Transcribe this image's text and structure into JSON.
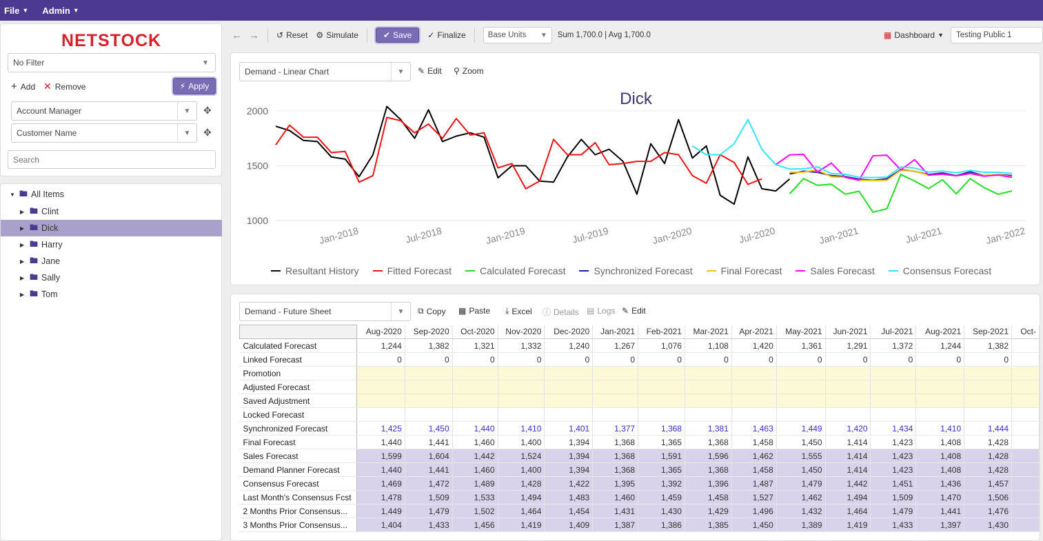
{
  "menu": {
    "file": "File",
    "admin": "Admin"
  },
  "logo": "NETSTOCK",
  "filter": {
    "selected": "No Filter",
    "add": "Add",
    "remove": "Remove",
    "apply": "Apply",
    "fields": [
      "Account Manager",
      "Customer Name"
    ],
    "search_placeholder": "Search"
  },
  "tree": {
    "root": "All Items",
    "items": [
      "Clint",
      "Dick",
      "Harry",
      "Jane",
      "Sally",
      "Tom"
    ],
    "selected": "Dick"
  },
  "toolbar": {
    "reset": "Reset",
    "simulate": "Simulate",
    "save": "Save",
    "finalize": "Finalize",
    "units": "Base Units",
    "stats": "Sum 1,700.0 | Avg 1,700.0",
    "dashboard": "Dashboard",
    "view": "Testing Public 1"
  },
  "chart_panel": {
    "selector": "Demand - Linear Chart",
    "edit": "Edit",
    "zoom": "Zoom"
  },
  "colors": {
    "accent": "#4b3a8f",
    "selected_row": "#a9a0cc",
    "logo": "#d6202b"
  },
  "chart_data": {
    "type": "line",
    "title": "Dick",
    "y_ticks": [
      1000,
      1500,
      2000
    ],
    "ylim": [
      950,
      2150
    ],
    "x_tick_labels": [
      "Jan-2018",
      "Jul-2018",
      "Jan-2019",
      "Jul-2019",
      "Jan-2020",
      "Jul-2020",
      "Jan-2021",
      "Jul-2021",
      "Jan-2022"
    ],
    "x_start_month": "Jul-2017",
    "x_end_month": "Jan-2022",
    "legend": "bottom",
    "series": [
      {
        "name": "Resultant History",
        "color": "#000000",
        "start_month": "Jul-2017",
        "values": [
          1860,
          1820,
          1730,
          1720,
          1580,
          1560,
          1400,
          1600,
          2040,
          1920,
          1750,
          2010,
          1720,
          1770,
          1800,
          1760,
          1390,
          1500,
          1500,
          1360,
          1350,
          1580,
          1740,
          1600,
          1650,
          1540,
          1240,
          1700,
          1520,
          1920,
          1570,
          1680,
          1230,
          1150,
          1580,
          1290,
          1270,
          1380
        ]
      },
      {
        "name": "Fitted Forecast",
        "color": "#ee1111",
        "start_month": "Jul-2017",
        "values": [
          1690,
          1870,
          1760,
          1760,
          1620,
          1630,
          1350,
          1410,
          1940,
          1910,
          1800,
          1880,
          1750,
          1930,
          1780,
          1800,
          1480,
          1520,
          1290,
          1360,
          1740,
          1600,
          1600,
          1710,
          1510,
          1520,
          1540,
          1540,
          1620,
          1600,
          1410,
          1340,
          1600,
          1530,
          1330,
          1380
        ]
      },
      {
        "name": "Calculated Forecast",
        "color": "#22dd22",
        "start_month": "Aug-2020",
        "values": [
          1244,
          1382,
          1321,
          1332,
          1240,
          1267,
          1076,
          1108,
          1420,
          1361,
          1291,
          1372,
          1244,
          1382,
          1300,
          1240,
          1270
        ]
      },
      {
        "name": "Synchronized Forecast",
        "color": "#1a1aa6",
        "start_month": "Aug-2020",
        "values": [
          1425,
          1450,
          1440,
          1410,
          1401,
          1377,
          1368,
          1381,
          1463,
          1449,
          1420,
          1434,
          1410,
          1444,
          1410,
          1420,
          1410
        ]
      },
      {
        "name": "Final Forecast",
        "color": "#f0c000",
        "start_month": "Aug-2020",
        "values": [
          1440,
          1441,
          1460,
          1400,
          1394,
          1368,
          1365,
          1368,
          1458,
          1450,
          1414,
          1423,
          1408,
          1428,
          1410,
          1420,
          1400
        ]
      },
      {
        "name": "Sales Forecast",
        "color": "#ff00ff",
        "start_month": "Jul-2020",
        "values": [
          1510,
          1599,
          1604,
          1442,
          1524,
          1394,
          1368,
          1591,
          1596,
          1462,
          1555,
          1414,
          1423,
          1408,
          1428,
          1405,
          1415,
          1395
        ]
      },
      {
        "name": "Consensus Forecast",
        "color": "#33e5f2",
        "start_month": "Jan-2020",
        "values": [
          1680,
          1600,
          1600,
          1700,
          1920,
          1650,
          1510,
          1469,
          1472,
          1489,
          1428,
          1422,
          1395,
          1392,
          1396,
          1487,
          1479,
          1442,
          1451,
          1436,
          1457,
          1440,
          1440,
          1430
        ]
      }
    ]
  },
  "sheet": {
    "selector": "Demand - Future Sheet",
    "actions": {
      "copy": "Copy",
      "paste": "Paste",
      "excel": "Excel",
      "details": "Details",
      "logs": "Logs",
      "edit": "Edit"
    },
    "columns": [
      "Aug-2020",
      "Sep-2020",
      "Oct-2020",
      "Nov-2020",
      "Dec-2020",
      "Jan-2021",
      "Feb-2021",
      "Mar-2021",
      "Apr-2021",
      "May-2021",
      "Jun-2021",
      "Jul-2021",
      "Aug-2021",
      "Sep-2021",
      "Oct-"
    ],
    "rows": [
      {
        "label": "Calculated Forecast",
        "style": "plain",
        "values": [
          "1,244",
          "1,382",
          "1,321",
          "1,332",
          "1,240",
          "1,267",
          "1,076",
          "1,108",
          "1,420",
          "1,361",
          "1,291",
          "1,372",
          "1,244",
          "1,382",
          ""
        ]
      },
      {
        "label": "Linked Forecast",
        "style": "plain",
        "values": [
          "0",
          "0",
          "0",
          "0",
          "0",
          "0",
          "0",
          "0",
          "0",
          "0",
          "0",
          "0",
          "0",
          "0",
          ""
        ]
      },
      {
        "label": "Promotion",
        "style": "yellow",
        "values": [
          "",
          "",
          "",
          "",
          "",
          "",
          "",
          "",
          "",
          "",
          "",
          "",
          "",
          "",
          ""
        ]
      },
      {
        "label": "Adjusted Forecast",
        "style": "yellow",
        "values": [
          "",
          "",
          "",
          "",
          "",
          "",
          "",
          "",
          "",
          "",
          "",
          "",
          "",
          "",
          ""
        ]
      },
      {
        "label": "Saved Adjustment",
        "style": "yellow",
        "values": [
          "",
          "",
          "",
          "",
          "",
          "",
          "",
          "",
          "",
          "",
          "",
          "",
          "",
          "",
          ""
        ]
      },
      {
        "label": "Locked Forecast",
        "style": "plain",
        "values": [
          "",
          "",
          "",
          "",
          "",
          "",
          "",
          "",
          "",
          "",
          "",
          "",
          "",
          "",
          ""
        ]
      },
      {
        "label": "Synchronized Forecast",
        "style": "blue",
        "values": [
          "1,425",
          "1,450",
          "1,440",
          "1,410",
          "1,401",
          "1,377",
          "1,368",
          "1,381",
          "1,463",
          "1,449",
          "1,420",
          "1,434",
          "1,410",
          "1,444",
          ""
        ]
      },
      {
        "label": "Final Forecast",
        "style": "plain",
        "values": [
          "1,440",
          "1,441",
          "1,460",
          "1,400",
          "1,394",
          "1,368",
          "1,365",
          "1,368",
          "1,458",
          "1,450",
          "1,414",
          "1,423",
          "1,408",
          "1,428",
          ""
        ]
      },
      {
        "label": "Sales Forecast",
        "style": "lilac",
        "values": [
          "1,599",
          "1,604",
          "1,442",
          "1,524",
          "1,394",
          "1,368",
          "1,591",
          "1,596",
          "1,462",
          "1,555",
          "1,414",
          "1,423",
          "1,408",
          "1,428",
          ""
        ]
      },
      {
        "label": "Demand Planner Forecast",
        "style": "lilac",
        "values": [
          "1,440",
          "1,441",
          "1,460",
          "1,400",
          "1,394",
          "1,368",
          "1,365",
          "1,368",
          "1,458",
          "1,450",
          "1,414",
          "1,423",
          "1,408",
          "1,428",
          ""
        ]
      },
      {
        "label": "Consensus Forecast",
        "style": "lilac",
        "values": [
          "1,469",
          "1,472",
          "1,489",
          "1,428",
          "1,422",
          "1,395",
          "1,392",
          "1,396",
          "1,487",
          "1,479",
          "1,442",
          "1,451",
          "1,436",
          "1,457",
          ""
        ]
      },
      {
        "label": "Last Month's Consensus Fcst",
        "style": "lilac",
        "values": [
          "1,478",
          "1,509",
          "1,533",
          "1,494",
          "1,483",
          "1,460",
          "1,459",
          "1,458",
          "1,527",
          "1,462",
          "1,494",
          "1,509",
          "1,470",
          "1,506",
          ""
        ]
      },
      {
        "label": "2 Months Prior Consensus...",
        "style": "lilac",
        "values": [
          "1,449",
          "1,479",
          "1,502",
          "1,464",
          "1,454",
          "1,431",
          "1,430",
          "1,429",
          "1,496",
          "1,432",
          "1,464",
          "1,479",
          "1,441",
          "1,476",
          ""
        ]
      },
      {
        "label": "3 Months Prior Consensus...",
        "style": "lilac",
        "values": [
          "1,404",
          "1,433",
          "1,456",
          "1,419",
          "1,409",
          "1,387",
          "1,386",
          "1,385",
          "1,450",
          "1,389",
          "1,419",
          "1,433",
          "1,397",
          "1,430",
          ""
        ]
      }
    ]
  }
}
